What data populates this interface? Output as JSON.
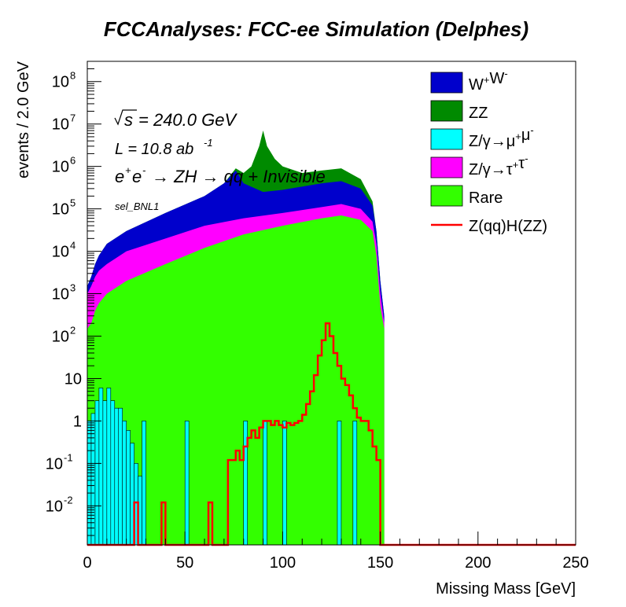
{
  "chart_data": {
    "type": "area",
    "title": "FCCAnalyses: FCC-ee Simulation (Delphes)",
    "xlabel": "Missing Mass [GeV]",
    "ylabel": "events / 2.0 GeV",
    "xlim": [
      0,
      250
    ],
    "ylim": [
      0.0012,
      300000000
    ],
    "yscale": "log",
    "grid": false,
    "legend_position": "top-right",
    "x_ticks": [
      "0",
      "50",
      "100",
      "150",
      "200",
      "250"
    ],
    "y_ticks": [
      {
        "base": "10",
        "exp": "-2",
        "value": 0.01
      },
      {
        "base": "10",
        "exp": "-1",
        "value": 0.1
      },
      {
        "base": "1",
        "exp": "",
        "value": 1
      },
      {
        "base": "10",
        "exp": "",
        "value": 10
      },
      {
        "base": "10",
        "exp": "2",
        "value": 100
      },
      {
        "base": "10",
        "exp": "3",
        "value": 1000
      },
      {
        "base": "10",
        "exp": "4",
        "value": 10000
      },
      {
        "base": "10",
        "exp": "5",
        "value": 100000
      },
      {
        "base": "10",
        "exp": "6",
        "value": 1000000
      },
      {
        "base": "10",
        "exp": "7",
        "value": 10000000
      },
      {
        "base": "10",
        "exp": "8",
        "value": 100000000
      }
    ],
    "annotations": {
      "sqrt_s": "= 240.0 GeV",
      "lumi_prefix": "L = 10.8 ab",
      "lumi_exp": "-1",
      "process": "→ ZH → qq + Invisible",
      "selection": "sel_BNL1"
    },
    "stack_cumulative_points": {
      "rare": [
        [
          0,
          150
        ],
        [
          2,
          200
        ],
        [
          4,
          400
        ],
        [
          6,
          600
        ],
        [
          10,
          1000
        ],
        [
          20,
          2000
        ],
        [
          40,
          5000
        ],
        [
          60,
          12000
        ],
        [
          80,
          25000
        ],
        [
          100,
          40000
        ],
        [
          120,
          60000
        ],
        [
          130,
          70000
        ],
        [
          140,
          55000
        ],
        [
          146,
          30000
        ],
        [
          148,
          8000
        ],
        [
          150,
          500
        ],
        [
          152,
          150
        ]
      ],
      "tautau": [
        [
          0,
          1000
        ],
        [
          2,
          1500
        ],
        [
          4,
          2500
        ],
        [
          6,
          3500
        ],
        [
          10,
          5000
        ],
        [
          20,
          10000
        ],
        [
          40,
          20000
        ],
        [
          60,
          40000
        ],
        [
          80,
          60000
        ],
        [
          100,
          80000
        ],
        [
          120,
          110000
        ],
        [
          130,
          130000
        ],
        [
          140,
          100000
        ],
        [
          146,
          50000
        ],
        [
          148,
          15000
        ],
        [
          150,
          1000
        ],
        [
          152,
          200
        ]
      ],
      "ww": [
        [
          0,
          1500
        ],
        [
          2,
          2500
        ],
        [
          4,
          5000
        ],
        [
          6,
          8000
        ],
        [
          10,
          15000
        ],
        [
          20,
          30000
        ],
        [
          40,
          80000
        ],
        [
          60,
          200000
        ],
        [
          70,
          400000
        ],
        [
          76,
          800000
        ],
        [
          80,
          400000
        ],
        [
          90,
          250000
        ],
        [
          100,
          280000
        ],
        [
          120,
          400000
        ],
        [
          130,
          450000
        ],
        [
          140,
          300000
        ],
        [
          146,
          120000
        ],
        [
          148,
          30000
        ],
        [
          150,
          2000
        ],
        [
          152,
          300
        ]
      ],
      "zz": [
        [
          0,
          1500
        ],
        [
          2,
          2500
        ],
        [
          4,
          5000
        ],
        [
          6,
          8000
        ],
        [
          10,
          15000
        ],
        [
          20,
          30000
        ],
        [
          40,
          80000
        ],
        [
          60,
          200000
        ],
        [
          70,
          400000
        ],
        [
          76,
          900000
        ],
        [
          80,
          700000
        ],
        [
          84,
          1000000
        ],
        [
          88,
          3000000
        ],
        [
          90,
          7000000
        ],
        [
          92,
          3000000
        ],
        [
          96,
          1500000
        ],
        [
          100,
          1000000
        ],
        [
          110,
          700000
        ],
        [
          120,
          800000
        ],
        [
          130,
          900000
        ],
        [
          140,
          500000
        ],
        [
          146,
          150000
        ],
        [
          148,
          30000
        ],
        [
          150,
          2000
        ],
        [
          152,
          300
        ]
      ]
    },
    "series": [
      {
        "name": "W⁺W⁻",
        "legend": {
          "base": "W",
          "sup1": "+",
          "mid": "W",
          "sup2": "-"
        },
        "color": "#0000cc"
      },
      {
        "name": "ZZ",
        "legend": {
          "base": "ZZ",
          "sup1": "",
          "mid": "",
          "sup2": ""
        },
        "color": "#008a00"
      },
      {
        "name": "Z/γ→μ⁺μ⁻",
        "legend": {
          "base": "Z/γ→μ",
          "sup1": "+",
          "mid": "μ",
          "sup2": "-"
        },
        "color": "#00ffff"
      },
      {
        "name": "Z/γ→τ⁺τ⁻",
        "legend": {
          "base": "Z/γ→τ",
          "sup1": "+",
          "mid": "τ",
          "sup2": "-"
        },
        "color": "#ff00ff"
      },
      {
        "name": "Rare",
        "legend": {
          "base": "Rare",
          "sup1": "",
          "mid": "",
          "sup2": ""
        },
        "color": "#33ff00"
      },
      {
        "name": "Z(qq)H(ZZ)",
        "legend": {
          "base": "Z(qq)H(ZZ)",
          "sup1": "",
          "mid": "",
          "sup2": ""
        },
        "color": "#ff0000",
        "style": "line"
      }
    ],
    "mumu_bins": [
      {
        "x": [
          0,
          2
        ],
        "y": 1.0
      },
      {
        "x": [
          2,
          4
        ],
        "y": 1.5
      },
      {
        "x": [
          4,
          6
        ],
        "y": 3.0
      },
      {
        "x": [
          6,
          8
        ],
        "y": 6.0
      },
      {
        "x": [
          8,
          10
        ],
        "y": 3.0
      },
      {
        "x": [
          10,
          12
        ],
        "y": 6.0
      },
      {
        "x": [
          12,
          14
        ],
        "y": 3.0
      },
      {
        "x": [
          14,
          16
        ],
        "y": 2.0
      },
      {
        "x": [
          16,
          18
        ],
        "y": 2.0
      },
      {
        "x": [
          18,
          20
        ],
        "y": 1.0
      },
      {
        "x": [
          20,
          22
        ],
        "y": 0.6
      },
      {
        "x": [
          22,
          24
        ],
        "y": 0.3
      },
      {
        "x": [
          24,
          26
        ],
        "y": 0.1
      },
      {
        "x": [
          26,
          28
        ],
        "y": 0.05
      },
      {
        "x": [
          28,
          30
        ],
        "y": 1.0
      },
      {
        "x": [
          50,
          52
        ],
        "y": 1.0
      },
      {
        "x": [
          80,
          82
        ],
        "y": 1.0
      },
      {
        "x": [
          90,
          92
        ],
        "y": 1.0
      },
      {
        "x": [
          100,
          102
        ],
        "y": 1.0
      },
      {
        "x": [
          128,
          130
        ],
        "y": 1.0
      },
      {
        "x": [
          136,
          138
        ],
        "y": 1.0
      }
    ],
    "signal_points": [
      [
        0,
        0.0012
      ],
      [
        24,
        0.0012
      ],
      [
        24,
        0.012
      ],
      [
        26,
        0.012
      ],
      [
        26,
        0.0012
      ],
      [
        38,
        0.0012
      ],
      [
        38,
        0.012
      ],
      [
        40,
        0.012
      ],
      [
        40,
        0.0012
      ],
      [
        62,
        0.0012
      ],
      [
        62,
        0.012
      ],
      [
        64,
        0.012
      ],
      [
        64,
        0.0012
      ],
      [
        72,
        0.0012
      ],
      [
        72,
        0.12
      ],
      [
        76,
        0.12
      ],
      [
        76,
        0.2
      ],
      [
        78,
        0.2
      ],
      [
        78,
        0.12
      ],
      [
        80,
        0.12
      ],
      [
        80,
        0.25
      ],
      [
        82,
        0.25
      ],
      [
        82,
        0.4
      ],
      [
        84,
        0.4
      ],
      [
        84,
        0.6
      ],
      [
        86,
        0.6
      ],
      [
        86,
        0.4
      ],
      [
        88,
        0.4
      ],
      [
        88,
        0.7
      ],
      [
        90,
        0.7
      ],
      [
        90,
        1.0
      ],
      [
        94,
        1.0
      ],
      [
        94,
        0.8
      ],
      [
        96,
        0.8
      ],
      [
        96,
        1.0
      ],
      [
        98,
        1.0
      ],
      [
        98,
        0.8
      ],
      [
        100,
        0.8
      ],
      [
        100,
        0.7
      ],
      [
        102,
        0.7
      ],
      [
        102,
        0.9
      ],
      [
        104,
        0.9
      ],
      [
        104,
        0.8
      ],
      [
        106,
        0.8
      ],
      [
        106,
        0.9
      ],
      [
        108,
        0.9
      ],
      [
        108,
        1.0
      ],
      [
        110,
        1.0
      ],
      [
        110,
        1.4
      ],
      [
        112,
        1.4
      ],
      [
        112,
        2.5
      ],
      [
        114,
        2.5
      ],
      [
        114,
        5.0
      ],
      [
        116,
        5.0
      ],
      [
        116,
        12
      ],
      [
        118,
        12
      ],
      [
        118,
        35
      ],
      [
        120,
        35
      ],
      [
        120,
        80
      ],
      [
        122,
        80
      ],
      [
        122,
        200
      ],
      [
        124,
        200
      ],
      [
        124,
        100
      ],
      [
        126,
        100
      ],
      [
        126,
        40
      ],
      [
        128,
        40
      ],
      [
        128,
        20
      ],
      [
        130,
        20
      ],
      [
        130,
        10
      ],
      [
        132,
        10
      ],
      [
        132,
        7
      ],
      [
        134,
        7
      ],
      [
        134,
        4
      ],
      [
        136,
        4
      ],
      [
        136,
        2
      ],
      [
        138,
        2
      ],
      [
        138,
        1.2
      ],
      [
        140,
        1.2
      ],
      [
        140,
        1.0
      ],
      [
        144,
        1.0
      ],
      [
        144,
        0.6
      ],
      [
        146,
        0.6
      ],
      [
        146,
        0.25
      ],
      [
        148,
        0.25
      ],
      [
        148,
        0.12
      ],
      [
        150,
        0.12
      ],
      [
        150,
        0.0012
      ],
      [
        250,
        0.0012
      ]
    ]
  }
}
